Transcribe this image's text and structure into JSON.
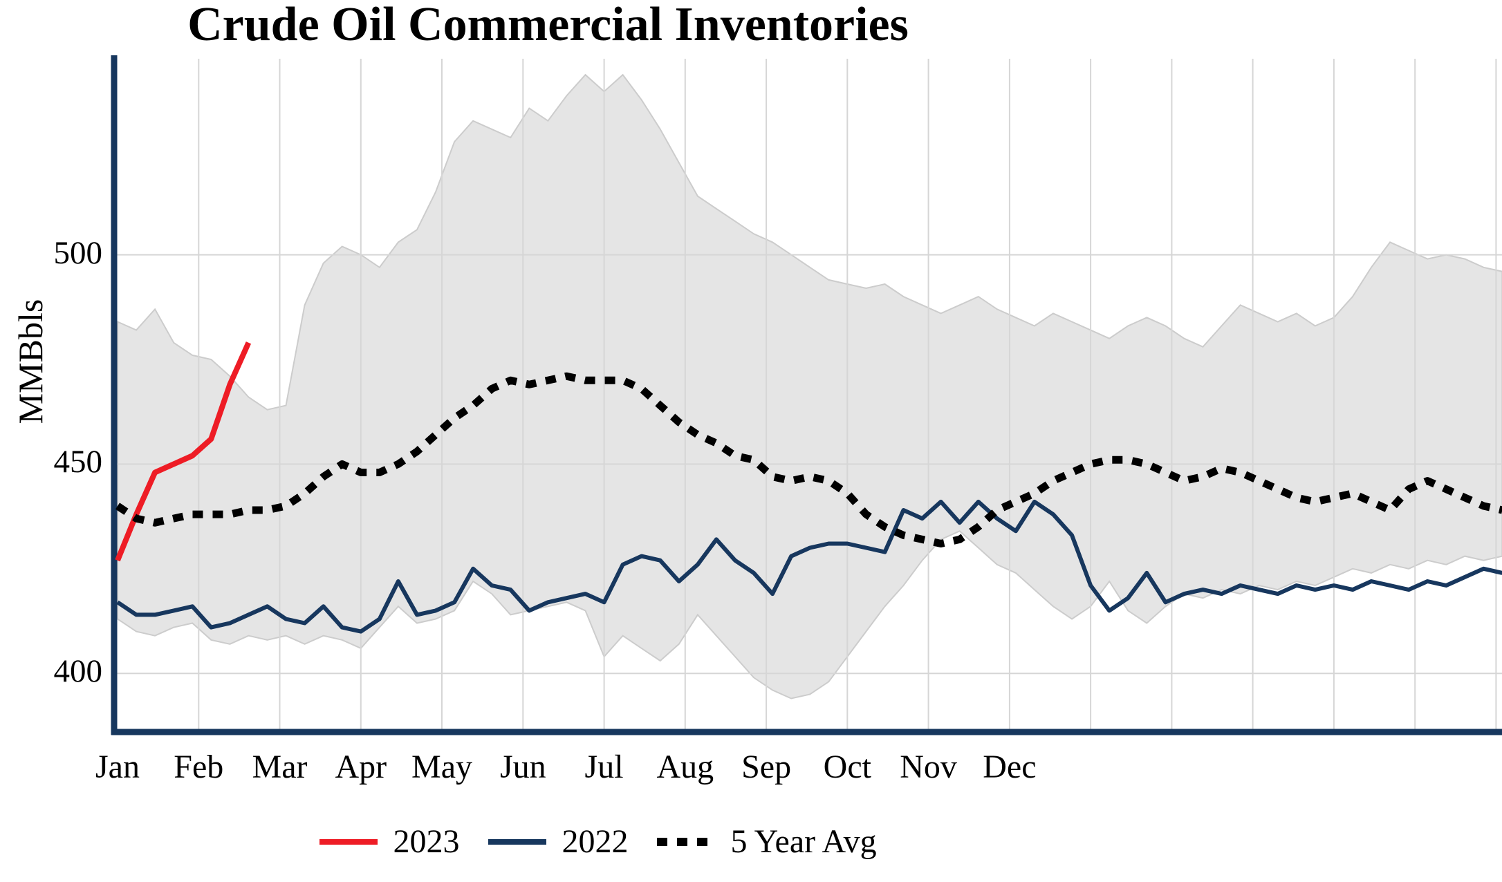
{
  "title": "Crude Oil Commercial Inventories",
  "chart_data": {
    "type": "line",
    "title": "Crude Oil Commercial Inventories",
    "ylabel": "MMBbls",
    "ylim": [
      386,
      546
    ],
    "yticks": [
      400,
      450,
      500
    ],
    "months": [
      "Jan",
      "Feb",
      "Mar",
      "Apr",
      "May",
      "Jun",
      "Jul",
      "Aug",
      "Sep",
      "Oct",
      "Nov",
      "Dec"
    ],
    "x_resolution": "weekly",
    "five_year_range": {
      "upper": [
        484,
        482,
        487,
        479,
        476,
        475,
        471,
        466,
        463,
        464,
        488,
        498,
        502,
        500,
        497,
        503,
        506,
        515,
        527,
        532,
        530,
        528,
        535,
        532,
        538,
        543,
        539,
        543,
        537,
        530,
        522,
        514,
        511,
        508,
        505,
        503,
        500,
        497,
        494,
        493,
        492,
        493,
        490,
        488,
        486,
        488,
        490,
        487,
        485,
        483,
        486,
        484,
        482,
        480,
        483,
        485,
        483,
        480,
        478,
        483,
        488,
        486,
        484,
        486,
        483,
        485,
        490,
        497,
        503,
        501,
        499,
        500,
        499,
        497,
        496
      ],
      "lower": [
        413,
        410,
        409,
        411,
        412,
        408,
        407,
        409,
        408,
        409,
        407,
        409,
        408,
        406,
        411,
        416,
        412,
        413,
        415,
        422,
        419,
        414,
        415,
        416,
        417,
        415,
        404,
        409,
        406,
        403,
        407,
        414,
        409,
        404,
        399,
        396,
        394,
        395,
        398,
        404,
        410,
        416,
        421,
        427,
        432,
        434,
        430,
        426,
        424,
        420,
        416,
        413,
        416,
        422,
        415,
        412,
        416,
        419,
        418,
        420,
        419,
        421,
        420,
        422,
        421,
        423,
        425,
        424,
        426,
        425,
        427,
        426,
        428,
        427,
        428
      ]
    },
    "series": [
      {
        "name": "2023",
        "color": "#ee1c25",
        "style": "solid",
        "values": [
          427,
          438,
          448,
          450,
          452,
          456,
          469,
          479
        ]
      },
      {
        "name": "2022",
        "color": "#17375e",
        "style": "solid",
        "values": [
          417,
          414,
          414,
          415,
          416,
          411,
          412,
          414,
          416,
          413,
          412,
          416,
          411,
          410,
          413,
          422,
          414,
          415,
          417,
          425,
          421,
          420,
          415,
          417,
          418,
          419,
          417,
          426,
          428,
          427,
          422,
          426,
          432,
          427,
          424,
          419,
          428,
          430,
          431,
          431,
          430,
          429,
          439,
          437,
          441,
          436,
          441,
          437,
          434,
          441,
          438,
          433,
          421,
          415,
          418,
          424,
          417,
          419,
          420,
          419,
          421,
          420,
          419,
          421,
          420,
          421,
          420,
          422,
          421,
          420,
          422,
          421,
          423,
          425,
          424
        ]
      },
      {
        "name": "5 Year Avg",
        "color": "#000000",
        "style": "dotted",
        "values": [
          440,
          437,
          436,
          437,
          438,
          438,
          438,
          439,
          439,
          440,
          443,
          447,
          450,
          448,
          448,
          450,
          453,
          457,
          461,
          464,
          468,
          470,
          469,
          470,
          471,
          470,
          470,
          470,
          468,
          464,
          460,
          457,
          455,
          452,
          451,
          447,
          446,
          447,
          446,
          443,
          438,
          435,
          433,
          432,
          431,
          432,
          435,
          439,
          441,
          443,
          446,
          448,
          450,
          451,
          451,
          450,
          448,
          446,
          447,
          449,
          448,
          446,
          444,
          442,
          441,
          442,
          443,
          441,
          439,
          444,
          446,
          444,
          442,
          440,
          439
        ]
      }
    ],
    "legend": {
      "position": "bottom",
      "entries": [
        "2023",
        "2022",
        "5 Year Avg"
      ]
    },
    "colors": {
      "band_fill": "#e5e5e5",
      "band_edge": "#cccccc",
      "gridline": "#d6d6d6",
      "axis": "#17375e"
    }
  }
}
